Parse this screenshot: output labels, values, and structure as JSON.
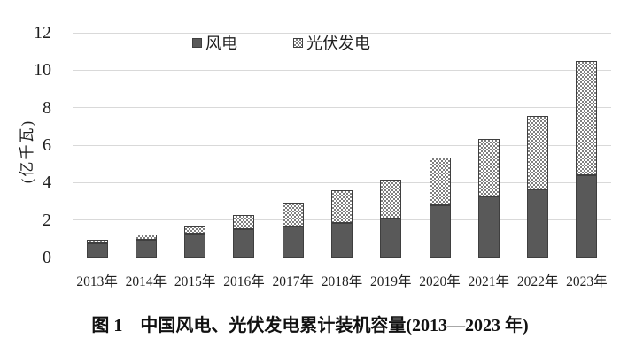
{
  "figure": {
    "caption": "图 1　中国风电、光伏发电累计装机容量(2013—2023 年)"
  },
  "chart_data": {
    "type": "bar",
    "stacked": true,
    "title": "图 1　中国风电、光伏发电累计装机容量(2013—2023 年)",
    "categories": [
      "2013年",
      "2014年",
      "2015年",
      "2016年",
      "2017年",
      "2018年",
      "2019年",
      "2020年",
      "2021年",
      "2022年",
      "2023年"
    ],
    "series": [
      {
        "name": "风电",
        "style": "solid",
        "color": "#595959",
        "values": [
          0.77,
          0.96,
          1.29,
          1.49,
          1.64,
          1.84,
          2.1,
          2.81,
          3.28,
          3.65,
          4.41
        ]
      },
      {
        "name": "光伏发电",
        "style": "checker",
        "color": "#7f7f7f",
        "values": [
          0.19,
          0.28,
          0.43,
          0.77,
          1.3,
          1.74,
          2.04,
          2.53,
          3.06,
          3.93,
          6.09
        ]
      }
    ],
    "totals": [
      0.96,
      1.24,
      1.72,
      2.26,
      2.94,
      3.58,
      4.14,
      5.34,
      6.34,
      7.58,
      10.5
    ],
    "xlabel": "",
    "ylabel": "(亿千瓦)",
    "ylim": [
      0,
      12
    ],
    "yticks": [
      0,
      2,
      4,
      6,
      8,
      10,
      12
    ],
    "grid": true,
    "gridline_color": "#d9d9d9",
    "bar_border_color": "#3f3f3f",
    "legend_position": "top-center",
    "legend_entries": [
      "风电",
      "光伏发电"
    ]
  }
}
